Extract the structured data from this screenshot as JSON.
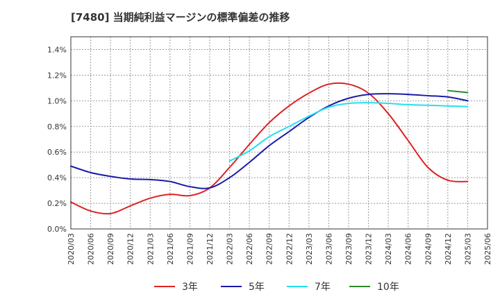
{
  "chart_data": {
    "type": "line",
    "title": "[7480]  当期純利益マージンの標準偏差の推移",
    "x": [
      "2020/03",
      "2020/06",
      "2020/09",
      "2020/12",
      "2021/03",
      "2021/06",
      "2021/09",
      "2021/12",
      "2022/03",
      "2022/06",
      "2022/09",
      "2022/12",
      "2023/03",
      "2023/06",
      "2023/09",
      "2023/12",
      "2024/03",
      "2024/06",
      "2024/09",
      "2024/12",
      "2025/03",
      "2025/06"
    ],
    "ylim": [
      0,
      1.5
    ],
    "yticks": [
      {
        "v": 0.0,
        "label": "0.0%"
      },
      {
        "v": 0.2,
        "label": "0.2%"
      },
      {
        "v": 0.4,
        "label": "0.4%"
      },
      {
        "v": 0.6,
        "label": "0.6%"
      },
      {
        "v": 0.8,
        "label": "0.8%"
      },
      {
        "v": 1.0,
        "label": "1.0%"
      },
      {
        "v": 1.2,
        "label": "1.2%"
      },
      {
        "v": 1.4,
        "label": "1.4%"
      }
    ],
    "grid": true,
    "legend_position": "bottom",
    "series": [
      {
        "name": "3年",
        "color": "#dd2222",
        "values": [
          0.21,
          0.14,
          0.12,
          0.18,
          0.24,
          0.27,
          0.26,
          0.32,
          0.48,
          0.66,
          0.83,
          0.96,
          1.06,
          1.13,
          1.13,
          1.06,
          0.9,
          0.69,
          0.48,
          0.38,
          0.37,
          null
        ]
      },
      {
        "name": "5年",
        "color": "#1a1aaa",
        "values": [
          0.49,
          0.44,
          0.41,
          0.39,
          0.385,
          0.37,
          0.33,
          0.32,
          0.4,
          0.52,
          0.65,
          0.76,
          0.87,
          0.96,
          1.02,
          1.05,
          1.055,
          1.05,
          1.04,
          1.03,
          1.0,
          null
        ]
      },
      {
        "name": "7年",
        "color": "#22e0ee",
        "values": [
          null,
          null,
          null,
          null,
          null,
          null,
          null,
          null,
          0.53,
          0.61,
          0.72,
          0.8,
          0.88,
          0.95,
          0.98,
          0.985,
          0.98,
          0.97,
          0.965,
          0.96,
          0.955,
          null
        ]
      },
      {
        "name": "10年",
        "color": "#2a8a2a",
        "values": [
          null,
          null,
          null,
          null,
          null,
          null,
          null,
          null,
          null,
          null,
          null,
          null,
          null,
          null,
          null,
          null,
          null,
          null,
          null,
          1.08,
          1.065,
          null
        ]
      }
    ]
  }
}
